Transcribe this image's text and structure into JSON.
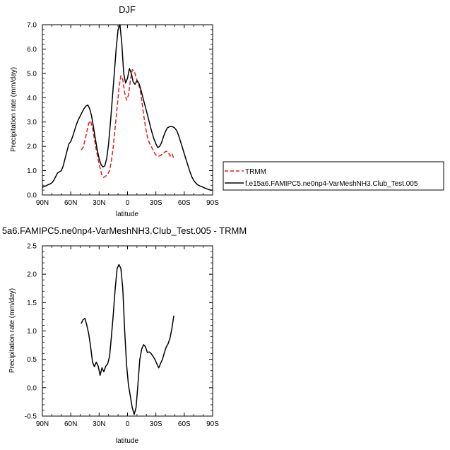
{
  "chart_data": [
    {
      "type": "line",
      "title": "DJF",
      "xlabel": "latitude",
      "ylabel": "Precipitation rate (mm/day)",
      "xlim": [
        90,
        -90
      ],
      "ylim": [
        0,
        7
      ],
      "x_ticks": [
        90,
        60,
        30,
        0,
        -30,
        -60,
        -90
      ],
      "x_tick_labels": [
        "90N",
        "60N",
        "30N",
        "0",
        "30S",
        "60S",
        "90S"
      ],
      "y_ticks": [
        0,
        1,
        2,
        3,
        4,
        5,
        6,
        7
      ],
      "y_tick_labels": [
        "0.0",
        "1.0",
        "2.0",
        "3.0",
        "4.0",
        "5.0",
        "6.0",
        "7.0"
      ],
      "legend_position": "right, outside plot",
      "series": [
        {
          "name": "TRMM",
          "color": "#e41a1c",
          "dash": "dashed",
          "x": [
            49,
            47,
            45,
            43,
            41,
            39,
            37,
            35,
            33,
            31,
            29,
            27,
            25,
            23,
            21,
            19,
            17,
            15,
            13,
            11,
            9,
            7,
            5,
            3,
            1,
            -1,
            -3,
            -5,
            -7,
            -9,
            -11,
            -13,
            -15,
            -17,
            -19,
            -21,
            -23,
            -25,
            -27,
            -29,
            -31,
            -33,
            -35,
            -37,
            -39,
            -41,
            -43,
            -45,
            -47,
            -49
          ],
          "y": [
            1.85,
            1.95,
            2.25,
            2.6,
            2.95,
            3.05,
            2.75,
            2.3,
            1.85,
            1.45,
            1.1,
            0.8,
            0.72,
            0.78,
            0.85,
            1.0,
            1.4,
            2.0,
            2.8,
            3.6,
            4.4,
            4.9,
            4.75,
            4.2,
            3.9,
            4.1,
            4.7,
            5.15,
            5.1,
            4.85,
            4.6,
            4.4,
            3.9,
            3.3,
            2.8,
            2.4,
            2.15,
            2.0,
            1.85,
            1.7,
            1.6,
            1.6,
            1.62,
            1.7,
            1.75,
            1.8,
            1.75,
            1.6,
            1.7,
            1.5
          ]
        },
        {
          "name": "f.e15a6.FAMIPC5.ne0np4-VarMeshNH3.Club_Test.005",
          "color": "#000000",
          "dash": "solid",
          "x": [
            90,
            88,
            86,
            84,
            82,
            80,
            78,
            76,
            74,
            72,
            70,
            68,
            66,
            64,
            62,
            60,
            58,
            56,
            54,
            52,
            50,
            48,
            46,
            44,
            42,
            40,
            38,
            36,
            34,
            32,
            30,
            28,
            26,
            24,
            22,
            20,
            18,
            16,
            14,
            12,
            10,
            8,
            6,
            4,
            2,
            0,
            -2,
            -4,
            -6,
            -8,
            -10,
            -12,
            -14,
            -16,
            -18,
            -20,
            -22,
            -24,
            -26,
            -28,
            -30,
            -32,
            -34,
            -36,
            -38,
            -40,
            -42,
            -44,
            -46,
            -48,
            -50,
            -52,
            -54,
            -56,
            -58,
            -60,
            -62,
            -64,
            -66,
            -68,
            -70,
            -72,
            -74,
            -76,
            -78,
            -80,
            -82,
            -84,
            -86,
            -88,
            -90
          ],
          "y": [
            0.32,
            0.35,
            0.38,
            0.42,
            0.45,
            0.5,
            0.6,
            0.75,
            0.9,
            0.95,
            1.0,
            1.2,
            1.5,
            1.8,
            2.1,
            2.2,
            2.4,
            2.65,
            2.9,
            3.1,
            3.25,
            3.4,
            3.55,
            3.65,
            3.7,
            3.55,
            3.25,
            2.8,
            2.3,
            1.85,
            1.5,
            1.25,
            1.15,
            1.2,
            1.5,
            2.1,
            3.0,
            4.0,
            5.0,
            6.0,
            6.8,
            7.0,
            6.2,
            5.0,
            4.6,
            4.8,
            5.2,
            5.0,
            4.65,
            4.55,
            4.7,
            4.6,
            4.35,
            4.05,
            3.75,
            3.45,
            3.15,
            2.85,
            2.55,
            2.3,
            2.1,
            1.95,
            2.0,
            2.15,
            2.4,
            2.6,
            2.75,
            2.8,
            2.82,
            2.8,
            2.75,
            2.65,
            2.45,
            2.2,
            1.95,
            1.7,
            1.45,
            1.2,
            0.95,
            0.75,
            0.6,
            0.5,
            0.42,
            0.38,
            0.35,
            0.32,
            0.28,
            0.25,
            0.22,
            0.2,
            0.2
          ]
        }
      ]
    },
    {
      "type": "line",
      "title": "5a6.FAMIPC5.ne0np4-VarMeshNH3.Club_Test.005 - TRMM",
      "xlabel": "latitude",
      "ylabel": "Precipitation rate (mm/day)",
      "xlim": [
        90,
        -90
      ],
      "ylim": [
        -0.5,
        2.5
      ],
      "x_ticks": [
        90,
        60,
        30,
        0,
        -30,
        -60,
        -90
      ],
      "x_tick_labels": [
        "90N",
        "60N",
        "30N",
        "0",
        "30S",
        "60S",
        "90S"
      ],
      "y_ticks": [
        -0.5,
        0,
        0.5,
        1.0,
        1.5,
        2.0,
        2.5
      ],
      "y_tick_labels": [
        "-0.5",
        "0.0",
        "0.5",
        "1.0",
        "1.5",
        "2.0",
        "2.5"
      ],
      "series": [
        {
          "color": "#000000",
          "dash": "solid",
          "x": [
            49,
            47,
            45,
            43,
            41,
            39,
            37,
            35,
            33,
            31,
            29,
            27,
            25,
            23,
            21,
            19,
            17,
            15,
            13,
            11,
            9,
            7,
            5,
            3,
            1,
            -1,
            -3,
            -5,
            -7,
            -9,
            -11,
            -13,
            -15,
            -17,
            -19,
            -21,
            -23,
            -25,
            -27,
            -29,
            -31,
            -33,
            -35,
            -37,
            -39,
            -41,
            -43,
            -45,
            -47,
            -49
          ],
          "y": [
            1.13,
            1.2,
            1.22,
            1.1,
            0.95,
            0.72,
            0.45,
            0.37,
            0.45,
            0.38,
            0.22,
            0.35,
            0.28,
            0.38,
            0.42,
            0.55,
            0.9,
            1.3,
            1.75,
            2.1,
            2.17,
            2.1,
            1.75,
            1.0,
            0.4,
            0.05,
            -0.15,
            -0.35,
            -0.47,
            -0.35,
            0.05,
            0.5,
            0.68,
            0.76,
            0.72,
            0.62,
            0.63,
            0.6,
            0.55,
            0.5,
            0.42,
            0.35,
            0.43,
            0.5,
            0.62,
            0.72,
            0.78,
            0.88,
            1.05,
            1.27
          ]
        }
      ]
    }
  ]
}
